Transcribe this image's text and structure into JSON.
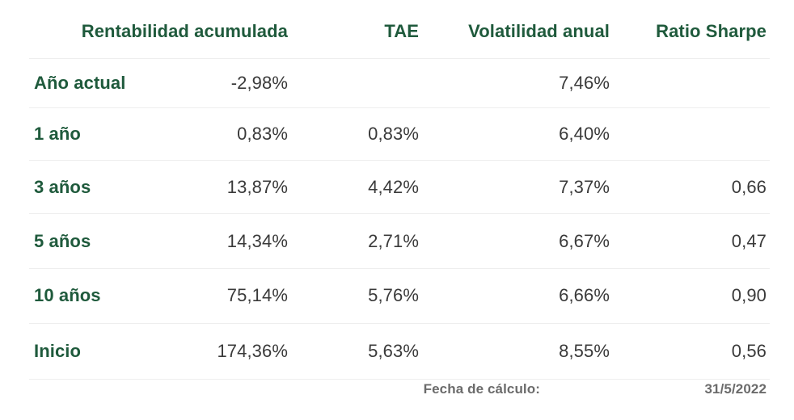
{
  "table": {
    "headers": [
      "Rentabilidad acumulada",
      "TAE",
      "Volatilidad anual",
      "Ratio Sharpe"
    ],
    "rows": [
      {
        "label": "Año actual",
        "rentabilidad": "-2,98%",
        "tae": "",
        "volatilidad": "7,46%",
        "sharpe": ""
      },
      {
        "label": "1 año",
        "rentabilidad": "0,83%",
        "tae": "0,83%",
        "volatilidad": "6,40%",
        "sharpe": ""
      },
      {
        "label": "3 años",
        "rentabilidad": "13,87%",
        "tae": "4,42%",
        "volatilidad": "7,37%",
        "sharpe": "0,66"
      },
      {
        "label": "5 años",
        "rentabilidad": "14,34%",
        "tae": "2,71%",
        "volatilidad": "6,67%",
        "sharpe": "0,47"
      },
      {
        "label": "10 años",
        "rentabilidad": "75,14%",
        "tae": "5,76%",
        "volatilidad": "6,66%",
        "sharpe": "0,90"
      },
      {
        "label": "Inicio",
        "rentabilidad": "174,36%",
        "tae": "5,63%",
        "volatilidad": "8,55%",
        "sharpe": "0,56"
      }
    ]
  },
  "footer": {
    "label": "Fecha de cálculo:",
    "date": "31/5/2022"
  },
  "colors": {
    "label_green": "#1f5a3c",
    "value_text": "#3a3a3a",
    "divider": "#eeeeee"
  }
}
